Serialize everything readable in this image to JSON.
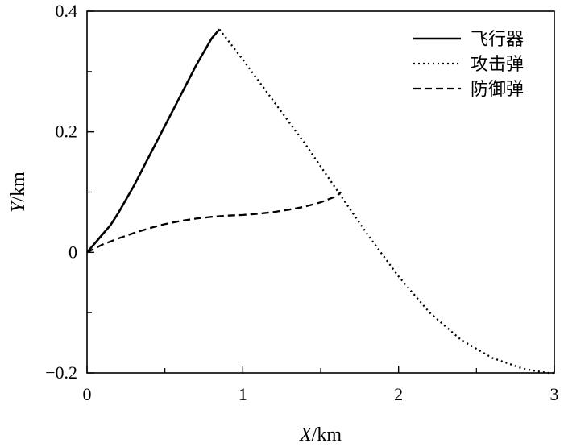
{
  "chart_data": {
    "type": "line",
    "xlabel_var": "X",
    "xlabel_unit": "/km",
    "ylabel_var": "Y",
    "ylabel_unit": "/km",
    "xlim": [
      0,
      3
    ],
    "ylim": [
      -0.2,
      0.4
    ],
    "x_ticks": [
      0,
      1,
      2,
      3
    ],
    "x_tick_labels": [
      "0",
      "1",
      "2",
      "3"
    ],
    "x_minor_ticks": [
      0.5,
      1.5,
      2.5
    ],
    "y_ticks": [
      -0.2,
      0,
      0.2,
      0.4
    ],
    "y_tick_labels": [
      "−0.2",
      "0",
      "0.2",
      "0.4"
    ],
    "y_minor_ticks": [
      -0.1,
      0.1,
      0.3
    ],
    "grid": false,
    "legend_position": "top-right",
    "series": [
      {
        "name": "飞行器",
        "style": "solid",
        "x": [
          0,
          0.05,
          0.1,
          0.15,
          0.2,
          0.3,
          0.4,
          0.5,
          0.6,
          0.7,
          0.8,
          0.85
        ],
        "y": [
          0,
          0.015,
          0.03,
          0.045,
          0.065,
          0.11,
          0.16,
          0.21,
          0.26,
          0.31,
          0.355,
          0.37
        ]
      },
      {
        "name": "攻击弹",
        "style": "dotted",
        "x": [
          0.85,
          1.0,
          1.2,
          1.4,
          1.6,
          1.8,
          2.0,
          2.2,
          2.4,
          2.6,
          2.8,
          2.95,
          3.0
        ],
        "y": [
          0.37,
          0.32,
          0.25,
          0.18,
          0.105,
          0.03,
          -0.04,
          -0.1,
          -0.145,
          -0.175,
          -0.193,
          -0.2,
          -0.2
        ]
      },
      {
        "name": "防御弹",
        "style": "dashed",
        "x": [
          0,
          0.1,
          0.2,
          0.3,
          0.4,
          0.5,
          0.6,
          0.7,
          0.8,
          0.9,
          1.0,
          1.1,
          1.2,
          1.3,
          1.4,
          1.5,
          1.6,
          1.63
        ],
        "y": [
          0,
          0.013,
          0.023,
          0.032,
          0.04,
          0.047,
          0.052,
          0.056,
          0.059,
          0.061,
          0.062,
          0.064,
          0.067,
          0.071,
          0.076,
          0.083,
          0.093,
          0.1
        ]
      }
    ]
  }
}
